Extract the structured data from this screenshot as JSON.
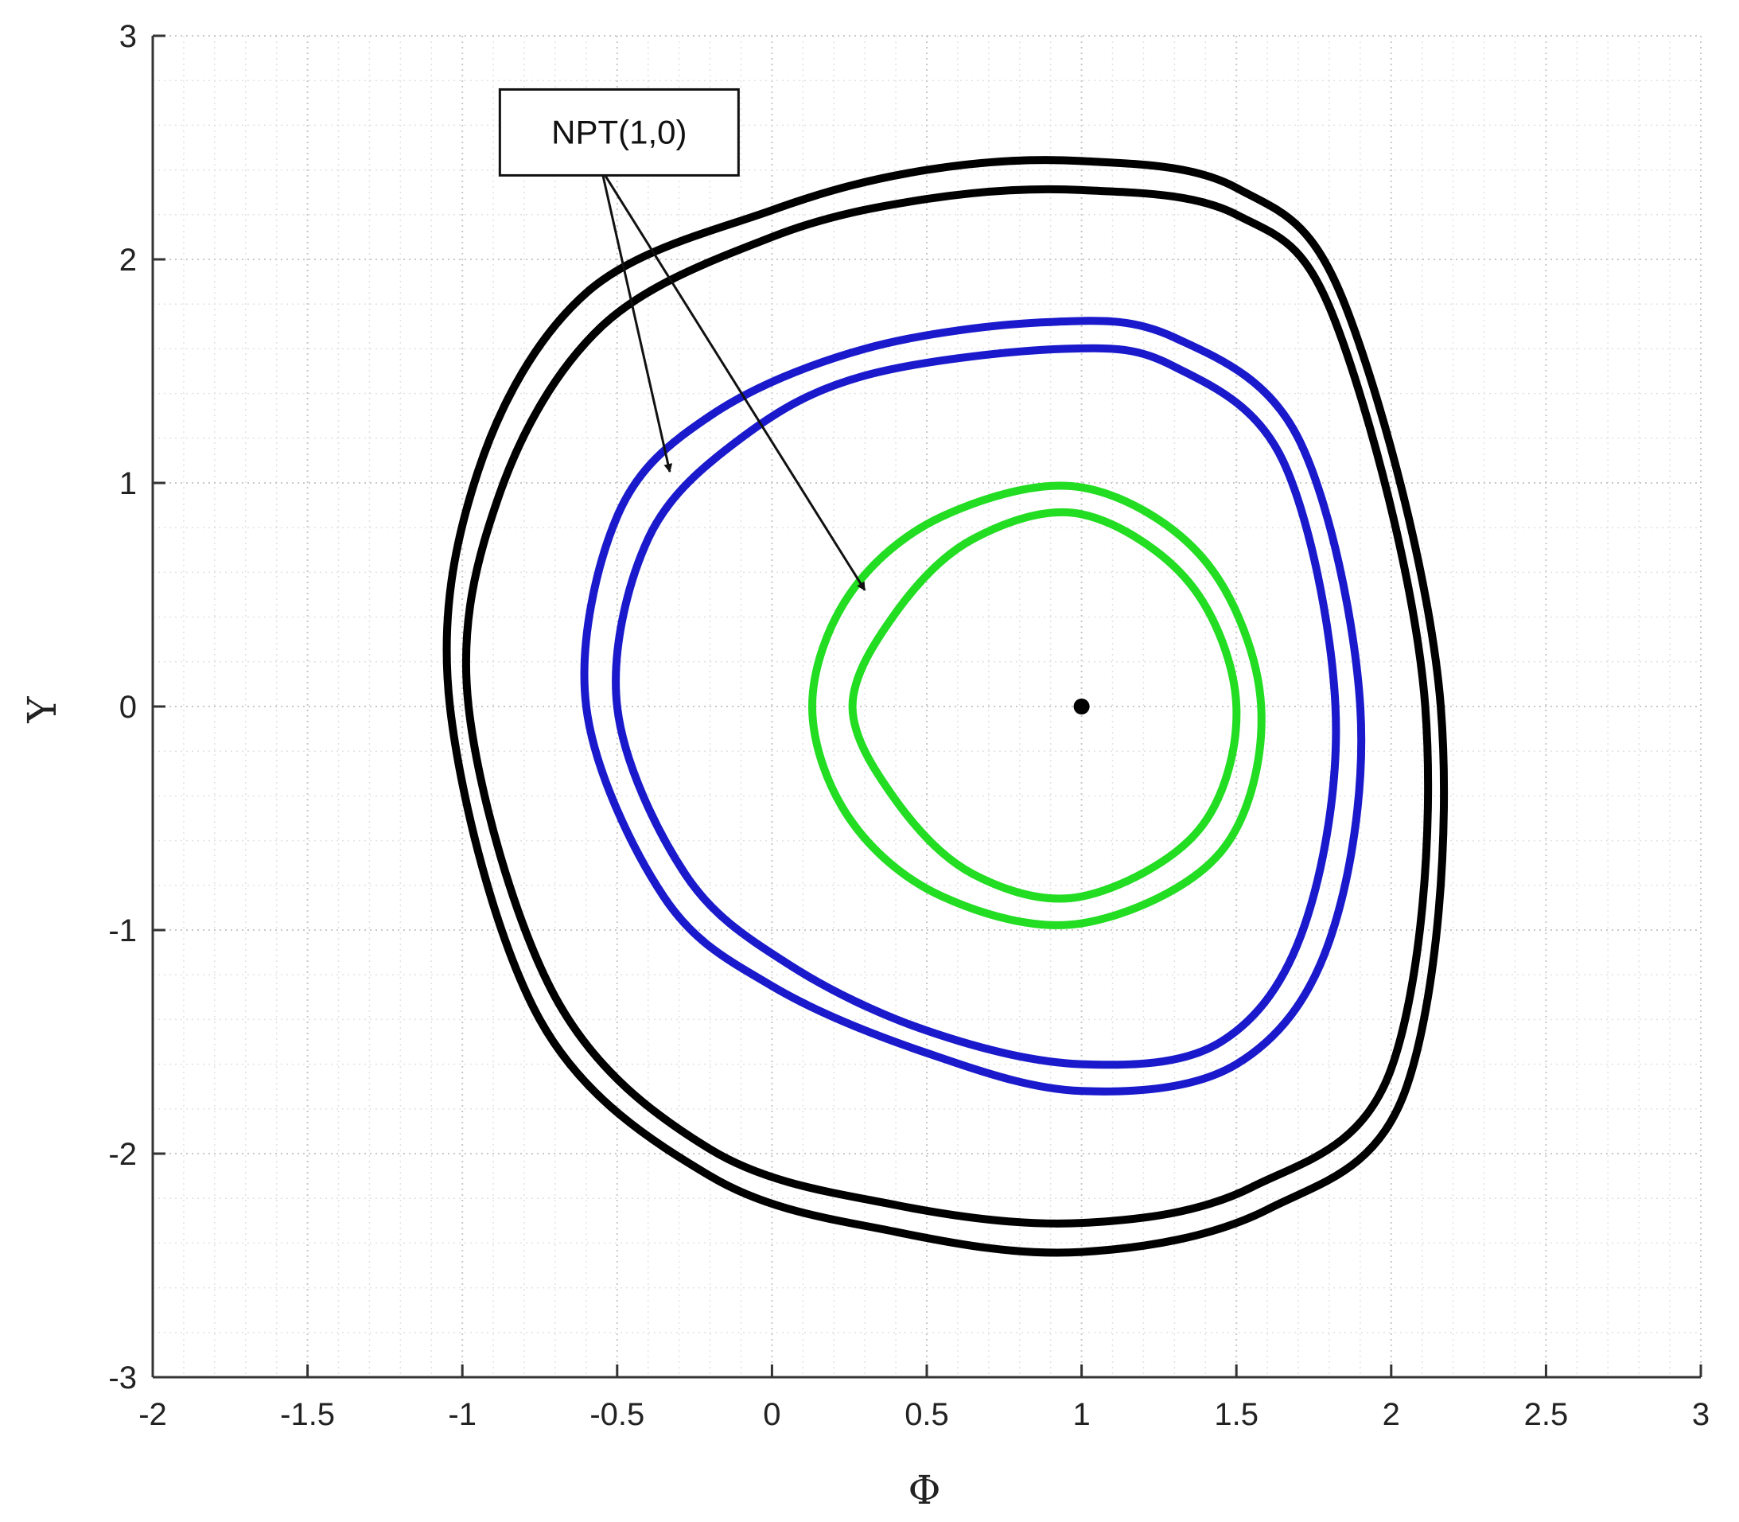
{
  "chart_data": {
    "type": "line",
    "title": "",
    "xlabel": "Φ",
    "ylabel": "Y",
    "xlim": [
      -2,
      3
    ],
    "ylim": [
      -3,
      3
    ],
    "xticks": [
      "-2",
      "-1.5",
      "-1",
      "-0.5",
      "0",
      "0.5",
      "1",
      "1.5",
      "2",
      "2.5",
      "3"
    ],
    "yticks": [
      "-3",
      "-2",
      "-1",
      "0",
      "1",
      "2",
      "3"
    ],
    "grid": true,
    "series": [
      {
        "color": "#000000",
        "orbits": [
          {
            "x": [
              -1.04,
              -0.95,
              -0.6,
              0.0,
              0.5,
              1.0,
              1.5,
              1.85,
              2.16,
              2.05,
              1.6,
              1.0,
              0.4,
              -0.2,
              -0.75,
              -1.04
            ],
            "y": [
              0.0,
              1.05,
              1.85,
              2.22,
              2.4,
              2.44,
              2.32,
              1.8,
              0.0,
              -1.7,
              -2.25,
              -2.44,
              -2.35,
              -2.1,
              -1.4,
              0.0
            ]
          },
          {
            "x": [
              -0.98,
              -0.88,
              -0.55,
              0.0,
              0.5,
              1.0,
              1.5,
              1.82,
              2.11,
              2.0,
              1.55,
              1.0,
              0.4,
              -0.2,
              -0.7,
              -0.98
            ],
            "y": [
              0.0,
              0.95,
              1.7,
              2.1,
              2.27,
              2.31,
              2.2,
              1.72,
              0.0,
              -1.62,
              -2.15,
              -2.31,
              -2.23,
              -1.98,
              -1.3,
              0.0
            ]
          }
        ]
      },
      {
        "color": "#1a1acc",
        "orbits": [
          {
            "x": [
              -0.6,
              -0.5,
              -0.2,
              0.3,
              0.9,
              1.3,
              1.7,
              1.9,
              1.8,
              1.5,
              1.0,
              0.5,
              0.0,
              -0.35,
              -0.6
            ],
            "y": [
              0.0,
              0.85,
              1.3,
              1.6,
              1.72,
              1.65,
              1.2,
              0.0,
              -1.05,
              -1.6,
              -1.72,
              -1.55,
              -1.25,
              -0.85,
              0.0
            ]
          },
          {
            "x": [
              -0.5,
              -0.4,
              -0.1,
              0.3,
              0.95,
              1.3,
              1.65,
              1.82,
              1.72,
              1.45,
              1.0,
              0.5,
              0.05,
              -0.28,
              -0.5
            ],
            "y": [
              0.0,
              0.75,
              1.2,
              1.48,
              1.6,
              1.52,
              1.1,
              0.0,
              -0.98,
              -1.5,
              -1.6,
              -1.45,
              -1.15,
              -0.75,
              0.0
            ]
          }
        ]
      },
      {
        "color": "#22dd22",
        "orbits": [
          {
            "x": [
              0.13,
              0.25,
              0.55,
              1.0,
              1.4,
              1.58,
              1.45,
              1.0,
              0.55,
              0.25,
              0.13
            ],
            "y": [
              0.0,
              0.5,
              0.85,
              0.98,
              0.65,
              0.0,
              -0.65,
              -0.97,
              -0.85,
              -0.5,
              0.0
            ]
          },
          {
            "x": [
              0.26,
              0.4,
              0.65,
              1.0,
              1.35,
              1.5,
              1.38,
              1.0,
              0.65,
              0.4,
              0.26
            ],
            "y": [
              0.0,
              0.42,
              0.75,
              0.86,
              0.55,
              0.0,
              -0.55,
              -0.85,
              -0.75,
              -0.42,
              0.0
            ]
          }
        ]
      }
    ],
    "points": [
      {
        "x": 1.0,
        "y": 0.0
      }
    ],
    "annotations": [
      {
        "text": "NPT(1,0)",
        "from": {
          "x": -0.55,
          "y": 2.4
        },
        "arrows_to": [
          {
            "x": -0.33,
            "y": 1.05
          },
          {
            "x": 0.3,
            "y": 0.52
          }
        ]
      }
    ]
  }
}
